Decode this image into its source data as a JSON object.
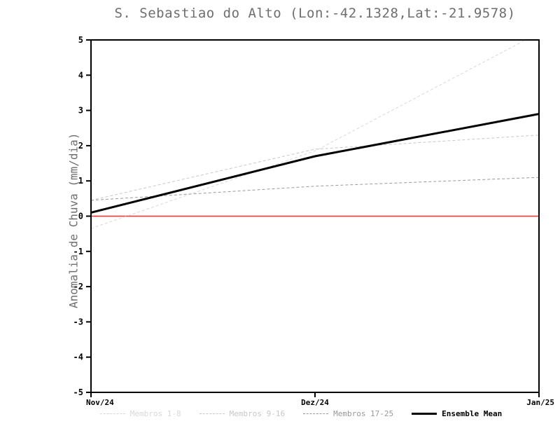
{
  "title": "S. Sebastiao do Alto (Lon:-42.1328,Lat:-21.9578)",
  "chart_data": {
    "type": "line",
    "title": "S. Sebastiao do Alto (Lon:-42.1328,Lat:-21.9578)",
    "xlabel": "",
    "ylabel": "Anomalia de Chuva (mm/dia)",
    "x_tick_labels": [
      "Nov/24",
      "Dez/24",
      "Jan/25"
    ],
    "x": [
      0,
      1,
      2
    ],
    "ylim": [
      -5,
      5
    ],
    "yticks": [
      5,
      4,
      3,
      2,
      1,
      0,
      -1,
      -2,
      -3,
      -4,
      -5
    ],
    "grid": false,
    "legend_position": "bottom",
    "reference_line": {
      "y": 0,
      "color": "#ff2a2a"
    },
    "series": [
      {
        "name": "Membros 1-8",
        "values": [
          -0.35,
          1.85,
          5.2
        ],
        "color": "#d8d8d8",
        "style": "dashed",
        "width": 1
      },
      {
        "name": "Membros 9-16",
        "values": [
          0.45,
          1.9,
          2.3
        ],
        "color": "#c7c7c7",
        "style": "dashed",
        "width": 1
      },
      {
        "name": "Membros 17-25",
        "values": [
          0.45,
          0.85,
          1.1
        ],
        "color": "#999999",
        "style": "dashed",
        "width": 1
      },
      {
        "name": "Ensemble Mean",
        "values": [
          0.1,
          1.7,
          2.9
        ],
        "color": "#000000",
        "style": "solid",
        "width": 3
      }
    ]
  }
}
